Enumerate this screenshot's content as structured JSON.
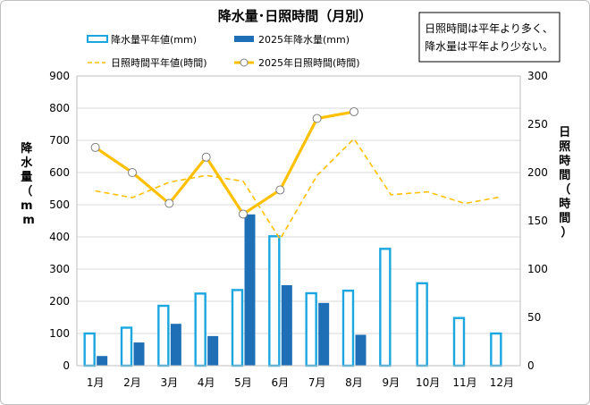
{
  "chart_data": {
    "type": "bar+line",
    "title": "降水量･日照時間（月別）",
    "annotation": [
      "日照時間は平年より多く、",
      "降水量は平年より少ない。"
    ],
    "y_left_label": "降水量（mm）",
    "y_right_label": "日照時間（時間）",
    "categories": [
      "1月",
      "2月",
      "3月",
      "4月",
      "5月",
      "6月",
      "7月",
      "8月",
      "9月",
      "10月",
      "11月",
      "12月"
    ],
    "y_left_range": [
      0,
      900
    ],
    "y_left_ticks": [
      "0",
      "100",
      "200",
      "300",
      "400",
      "500",
      "600",
      "700",
      "800",
      "900"
    ],
    "y_right_range": [
      0,
      300
    ],
    "y_right_ticks": [
      "0",
      "50",
      "100",
      "150",
      "200",
      "250",
      "300"
    ],
    "colors": {
      "precip_normal": "#1aa7e0",
      "precip_2025": "#1f6fb7",
      "sun_normal": "#ffc000",
      "sun_2025": "#ffc000",
      "grid": "#d9d9d9"
    },
    "series": [
      {
        "name": "降水量平年値(mm)",
        "axis": "left",
        "kind": "bar-outline",
        "values": [
          100,
          118,
          186,
          224,
          235,
          402,
          225,
          233,
          363,
          256,
          148,
          100
        ]
      },
      {
        "name": "2025年降水量(mm)",
        "axis": "left",
        "kind": "bar-solid",
        "values": [
          30,
          72,
          130,
          92,
          470,
          250,
          195,
          96,
          null,
          null,
          null,
          null
        ]
      },
      {
        "name": "日照時間平年値(時間)",
        "axis": "right",
        "kind": "line-dashed",
        "values": [
          181,
          174,
          190,
          197,
          191,
          131,
          197,
          235,
          177,
          180,
          168,
          175
        ]
      },
      {
        "name": "2025年日照時間(時間)",
        "axis": "right",
        "kind": "line-markers",
        "values": [
          226,
          200,
          168,
          216,
          157,
          182,
          256,
          263,
          null,
          null,
          null,
          null
        ]
      }
    ]
  }
}
